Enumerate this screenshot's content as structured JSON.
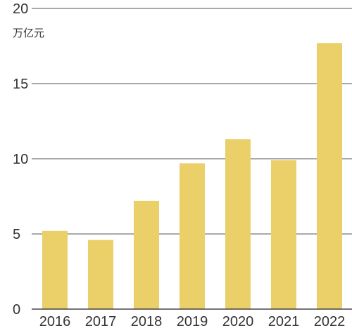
{
  "chart_data": {
    "type": "bar",
    "unit_label": "万亿元",
    "categories": [
      "2016",
      "2017",
      "2018",
      "2019",
      "2020",
      "2021",
      "2022"
    ],
    "values": [
      5.2,
      4.6,
      7.2,
      9.7,
      11.3,
      9.9,
      17.7
    ],
    "y_ticks": [
      "0",
      "5",
      "10",
      "15",
      "20"
    ],
    "ylim": [
      0,
      20
    ],
    "grid": true,
    "bar_color": "#ebcf69"
  }
}
